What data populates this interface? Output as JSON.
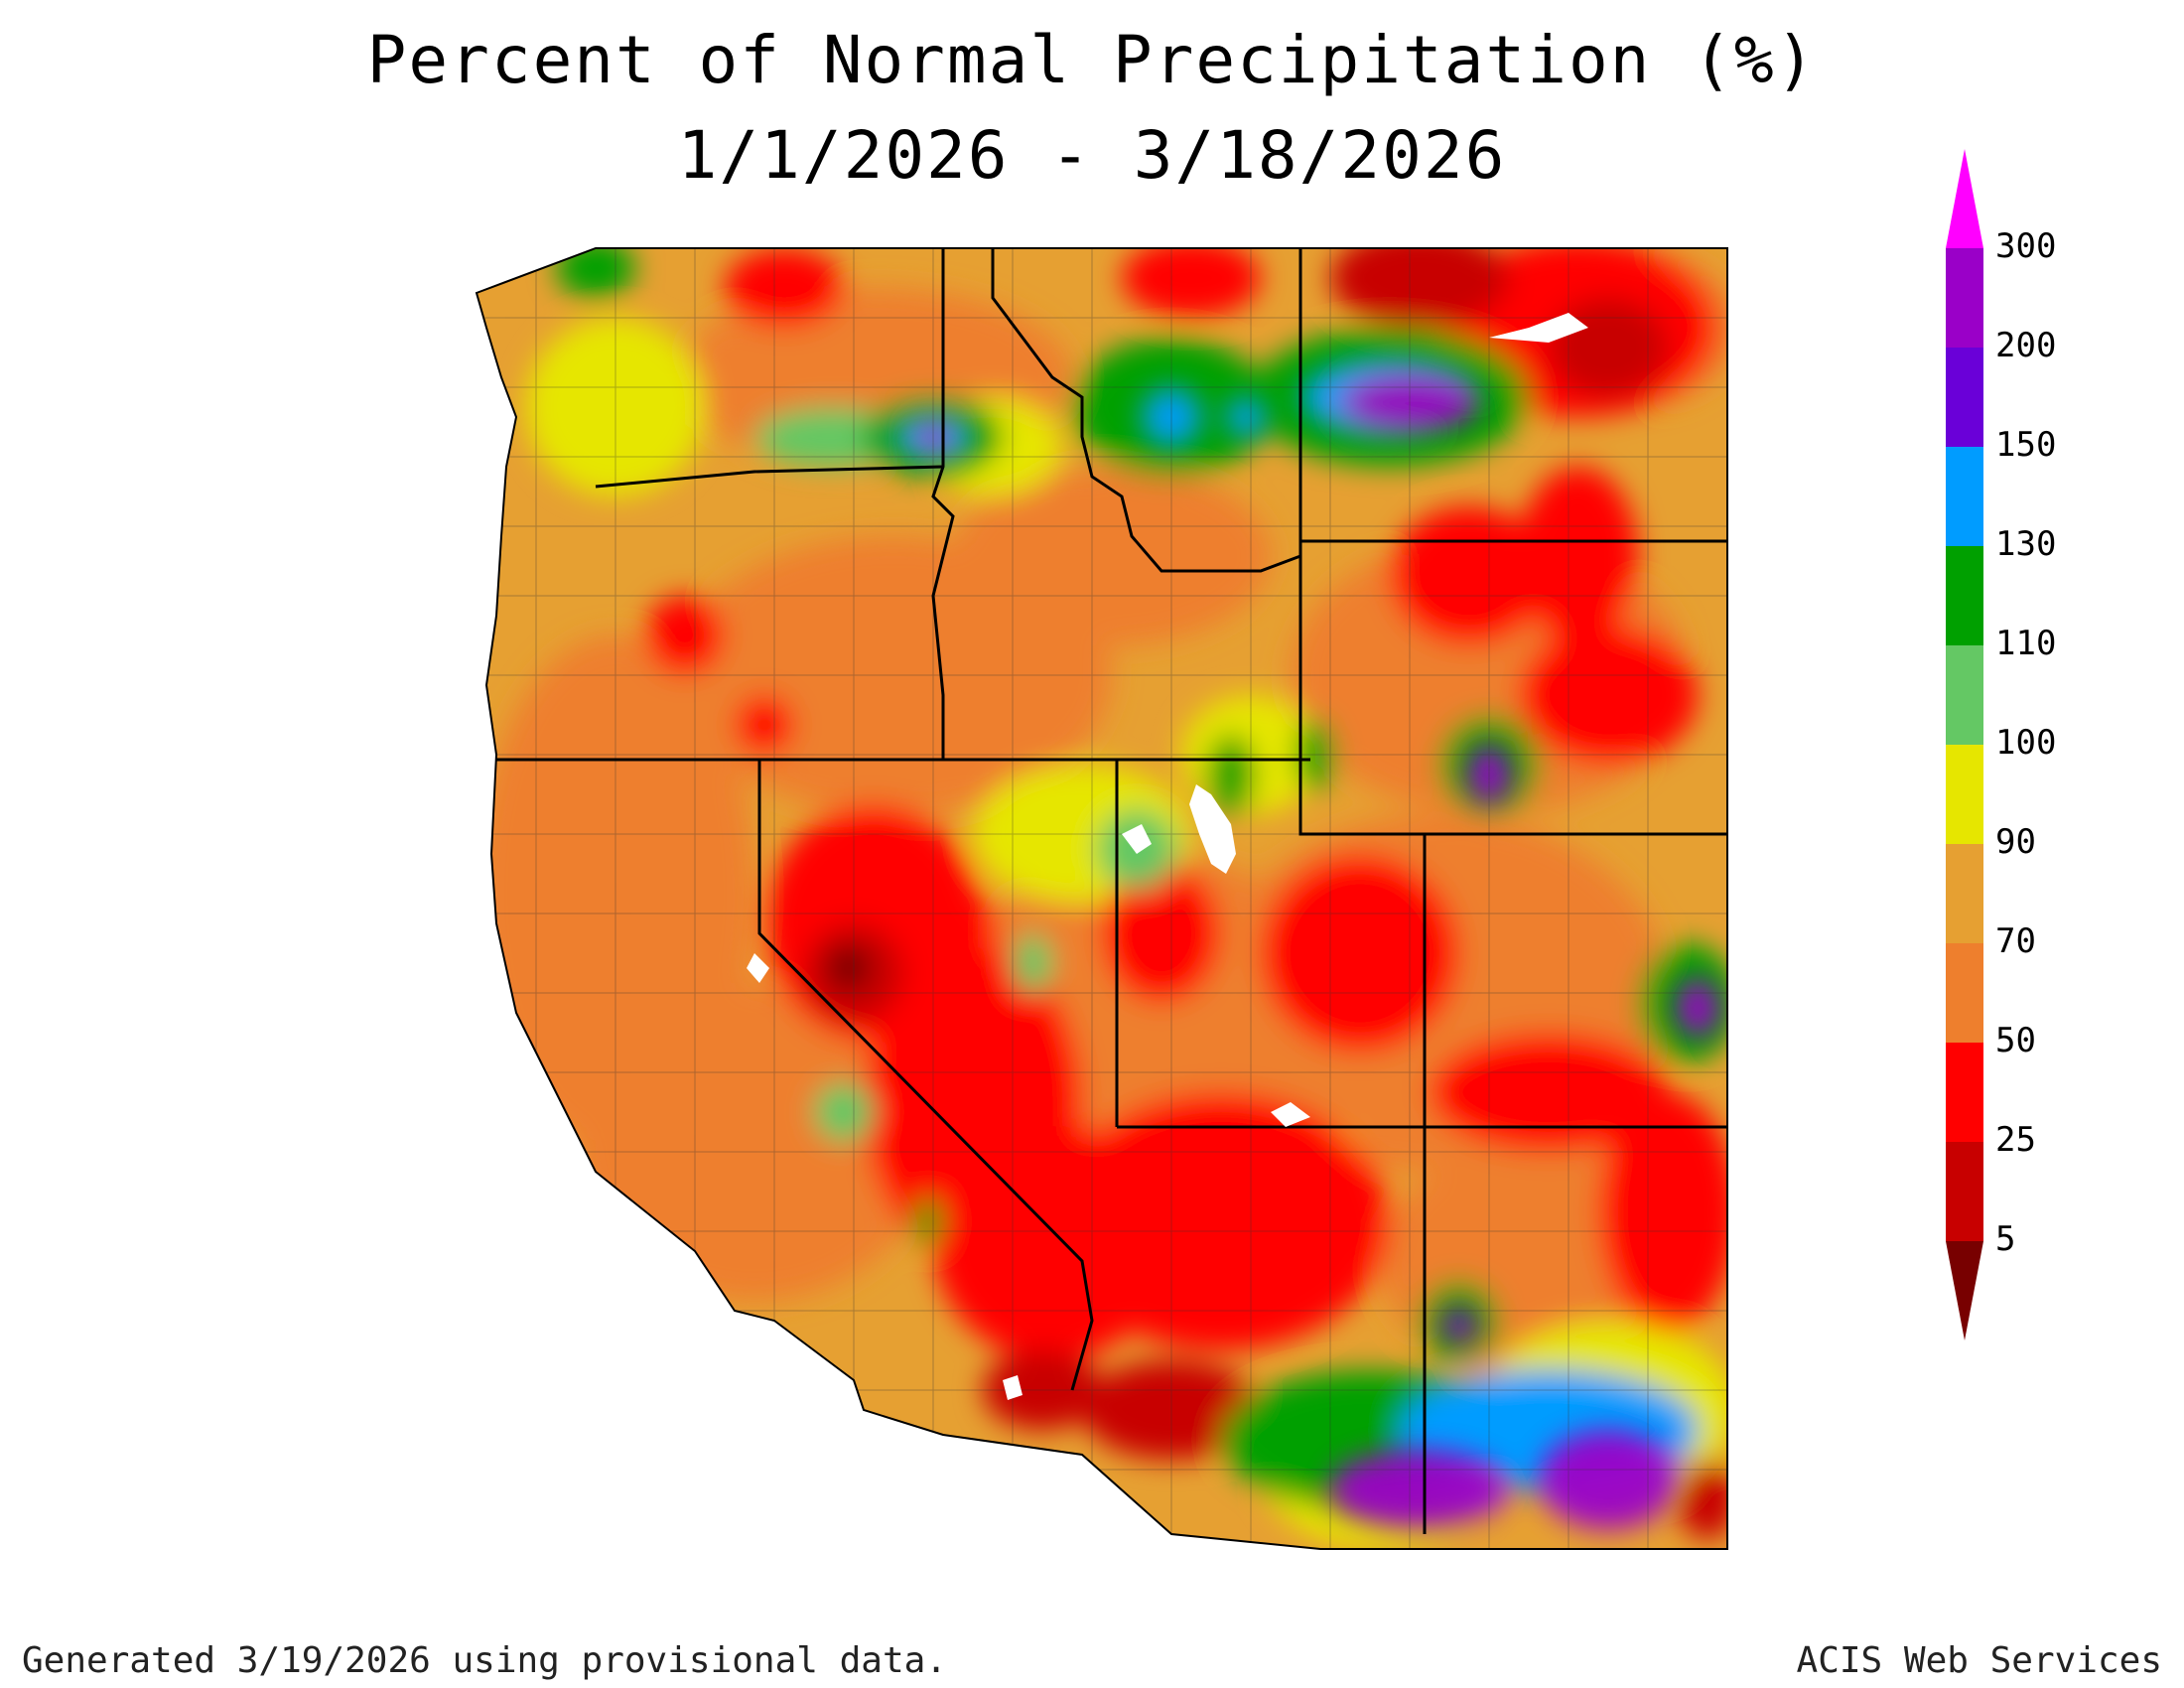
{
  "title_line1": "Percent of Normal Precipitation (%)",
  "title_line2": "1/1/2026 - 3/18/2026",
  "footer_left": "Generated 3/19/2026 using provisional data.",
  "footer_right": "ACIS Web Services",
  "legend": {
    "levels": [
      "300",
      "200",
      "150",
      "130",
      "110",
      "100",
      "90",
      "70",
      "50",
      "25",
      "5"
    ],
    "colors": [
      "#ff00ff",
      "#9a00c8",
      "#6a00d8",
      "#009cff",
      "#00a000",
      "#64c864",
      "#e6e600",
      "#e6a032",
      "#ee7f2d",
      "#ff0000",
      "#c80000",
      "#780000"
    ]
  },
  "map": {
    "region": "Western United States",
    "water_color": "#ffffff",
    "boundary_color": "#000000"
  }
}
